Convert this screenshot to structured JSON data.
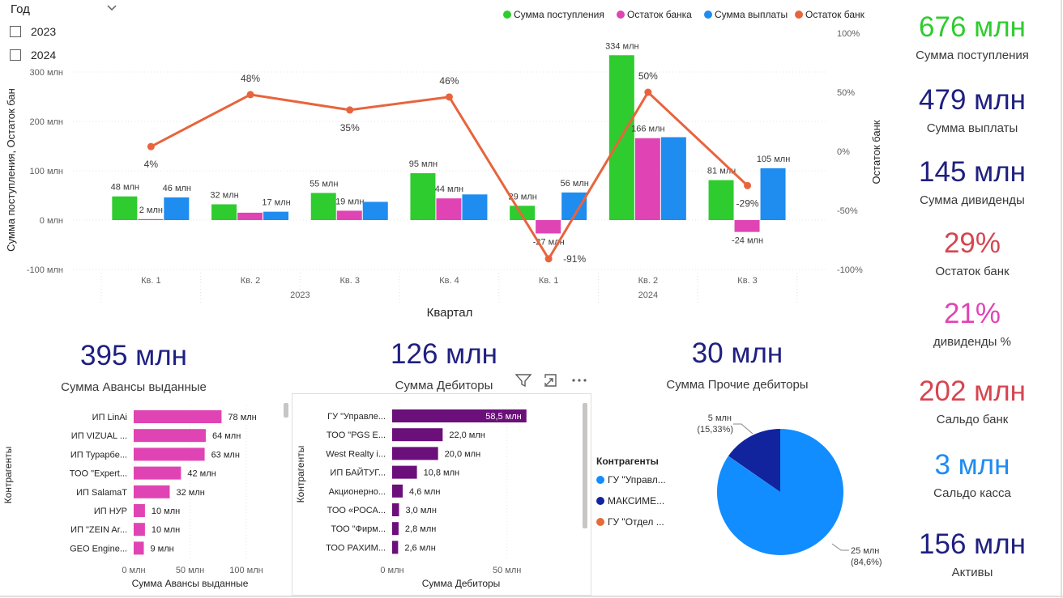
{
  "slicer": {
    "title": "Год",
    "options": [
      {
        "label": "2023",
        "checked": false
      },
      {
        "label": "2024",
        "checked": false
      }
    ]
  },
  "main_legend": [
    {
      "label": "Сумма поступления",
      "color": "#2ecc2e"
    },
    {
      "label": "Остаток банка",
      "color": "#e044b4"
    },
    {
      "label": "Сумма выплаты",
      "color": "#1f8cf0"
    },
    {
      "label": "Остаток банк",
      "color": "#e8643c"
    }
  ],
  "chart_data": [
    {
      "type": "combo-bar-line",
      "title": "",
      "xlabel": "Квартал",
      "ylabel": "Сумма поступления, Остаток бан",
      "y2label": "Остаток банк",
      "ylim": [
        -100,
        300
      ],
      "y2lim": [
        -100,
        100
      ],
      "yticks": [
        "300 млн",
        "200 млн",
        "100 млн",
        "0 млн",
        "-100 млн"
      ],
      "y2ticks": [
        "100%",
        "50%",
        "0%",
        "-50%",
        "-100%"
      ],
      "categories": [
        "Кв. 1",
        "Кв. 2",
        "Кв. 3",
        "Кв. 4",
        "Кв. 1",
        "Кв. 2",
        "Кв. 3"
      ],
      "groups": [
        {
          "label": "2023",
          "span": 4
        },
        {
          "label": "2024",
          "span": 3
        }
      ],
      "series": [
        {
          "name": "Сумма поступления",
          "kind": "bar",
          "color": "#2ecc2e",
          "values": [
            48,
            32,
            55,
            95,
            29,
            334,
            81
          ],
          "labels": [
            "48 млн",
            "32 млн",
            "55 млн",
            "95 млн",
            "29 млн",
            "334 млн",
            "81 млн"
          ]
        },
        {
          "name": "Остаток банка",
          "kind": "bar",
          "color": "#e044b4",
          "values": [
            2,
            15,
            19,
            44,
            -27,
            166,
            -24
          ],
          "labels": [
            "2 млн",
            "",
            "19 млн",
            "44 млн",
            "-27 млн",
            "166 млн",
            "-24 млн"
          ]
        },
        {
          "name": "Сумма выплаты",
          "kind": "bar",
          "color": "#1f8cf0",
          "values": [
            46,
            17,
            37,
            52,
            56,
            168,
            105
          ],
          "labels": [
            "46 млн",
            "17 млн",
            "",
            "",
            "56 млн",
            "",
            "105 млн"
          ]
        },
        {
          "name": "Остаток банк",
          "kind": "line",
          "axis": "y2",
          "color": "#e8643c",
          "values": [
            4,
            48,
            35,
            46,
            -91,
            50,
            -29
          ],
          "labels": [
            "4%",
            "48%",
            "35%",
            "46%",
            "-91%",
            "50%",
            "-29%"
          ]
        }
      ]
    },
    {
      "type": "bar",
      "orientation": "horizontal",
      "xlabel": "Сумма Авансы выданные",
      "ylabel": "Контрагенты",
      "xlim": [
        0,
        100
      ],
      "xticks": [
        {
          "v": 0,
          "l": "0 млн"
        },
        {
          "v": 50,
          "l": "50 млн"
        },
        {
          "v": 100,
          "l": "100 млн"
        }
      ],
      "color": "#e044b4",
      "categories": [
        "ИП LinAi",
        "ИП VIZUAL ...",
        "ИП Турарбе...",
        "ТОО \"Expert...",
        "ИП SalamaT",
        "ИП НУР",
        "ИП \"ZEIN Ar...",
        "GEO Engine..."
      ],
      "values": [
        78,
        64,
        63,
        42,
        32,
        10,
        10,
        9
      ],
      "labels": [
        "78 млн",
        "64 млн",
        "63 млн",
        "42 млн",
        "32 млн",
        "10 млн",
        "10 млн",
        "9 млн"
      ]
    },
    {
      "type": "bar",
      "orientation": "horizontal",
      "xlabel": "Сумма Дебиторы",
      "ylabel": "Контрагенты",
      "xlim": [
        0,
        60
      ],
      "xticks": [
        {
          "v": 0,
          "l": "0 млн"
        },
        {
          "v": 50,
          "l": "50 млн"
        }
      ],
      "color": "#6b0f7a",
      "categories": [
        "ГУ \"Управле...",
        "ТОО \"PGS E...",
        "West Realty i...",
        "ИП БАЙТУГ...",
        "Акционерно...",
        "ТОО «РОСА...",
        "ТОО \"Фирм...",
        "ТОО РАХИМ..."
      ],
      "values": [
        58.5,
        22.0,
        20.0,
        10.8,
        4.6,
        3.0,
        2.8,
        2.6
      ],
      "labels": [
        "58,5 млн",
        "22,0 млн",
        "20,0 млн",
        "10,8 млн",
        "4,6 млн",
        "3,0 млн",
        "2,8 млн",
        "2,6 млн"
      ]
    },
    {
      "type": "pie",
      "legend_title": "Контрагенты",
      "slices": [
        {
          "name": "ГУ \"Управл...",
          "value": 25,
          "pct": 84.6,
          "color": "#118dff",
          "label": "25 млн",
          "pct_label": "(84,6%)"
        },
        {
          "name": "МАКСИМЕ...",
          "value": 5,
          "pct": 15.33,
          "color": "#12239e",
          "label": "5 млн",
          "pct_label": "(15,33%)"
        },
        {
          "name": "ГУ \"Отдел ...",
          "value": 0,
          "pct": 0.07,
          "color": "#e66c37",
          "label": "",
          "pct_label": ""
        }
      ]
    }
  ],
  "cards": {
    "avansy": {
      "value": "395 млн",
      "label": "Сумма Авансы выданные"
    },
    "debitory": {
      "value": "126 млн",
      "label": "Сумма Дебиторы"
    },
    "prochie": {
      "value": "30 млн",
      "label": "Сумма Прочие дебиторы"
    }
  },
  "kpis": [
    {
      "value": "676 млн",
      "label": "Сумма поступления",
      "color": "#2ecc2e"
    },
    {
      "value": "479 млн",
      "label": "Сумма выплаты",
      "color": "#1f2080"
    },
    {
      "value": "145 млн",
      "label": "Сумма дивиденды",
      "color": "#1f2080"
    },
    {
      "value": "29%",
      "label": "Остаток банк",
      "color": "#d64550"
    },
    {
      "value": "21%",
      "label": "дивиденды %",
      "color": "#e044b4"
    },
    {
      "value": "202 млн",
      "label": "Сальдо банк",
      "color": "#d64550"
    },
    {
      "value": "3 млн",
      "label": "Сальдо касса",
      "color": "#1f8cf0"
    },
    {
      "value": "156 млн",
      "label": "Активы",
      "color": "#1f2080"
    }
  ],
  "toolbar": {
    "filter_icon": "filter-icon",
    "focus_icon": "focus-mode-icon",
    "more_icon": "more-options-icon"
  }
}
